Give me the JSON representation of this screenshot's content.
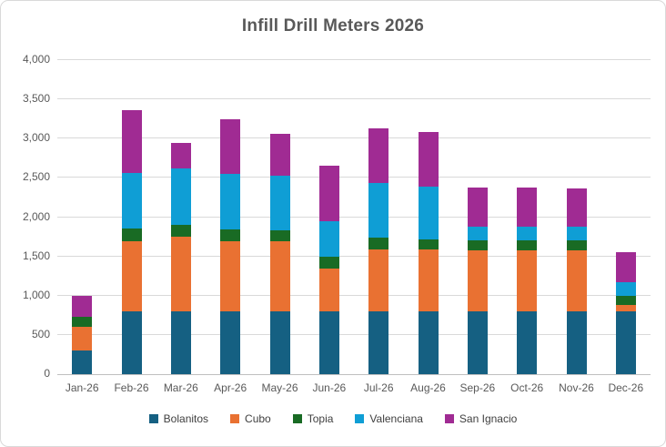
{
  "chart_data": {
    "type": "bar",
    "stacked": true,
    "title": "Infill Drill Meters 2026",
    "categories": [
      "Jan-26",
      "Feb-26",
      "Mar-26",
      "Apr-26",
      "May-26",
      "Jun-26",
      "Jul-26",
      "Aug-26",
      "Sep-26",
      "Oct-26",
      "Nov-26",
      "Dec-26"
    ],
    "series": [
      {
        "name": "Bolanitos",
        "color": "#156082",
        "values": [
          300,
          800,
          800,
          800,
          800,
          800,
          800,
          800,
          800,
          800,
          800,
          800
        ]
      },
      {
        "name": "Cubo",
        "color": "#E97132",
        "values": [
          300,
          890,
          950,
          890,
          890,
          550,
          790,
          790,
          780,
          780,
          780,
          80
        ]
      },
      {
        "name": "Topia",
        "color": "#196B24",
        "values": [
          130,
          170,
          150,
          150,
          140,
          150,
          150,
          130,
          130,
          130,
          130,
          120
        ]
      },
      {
        "name": "Valenciana",
        "color": "#0F9ED5",
        "values": [
          0,
          700,
          720,
          710,
          700,
          450,
          690,
          670,
          170,
          170,
          170,
          170
        ]
      },
      {
        "name": "San Ignacio",
        "color": "#A02B93",
        "values": [
          270,
          800,
          330,
          700,
          530,
          710,
          700,
          690,
          500,
          500,
          490,
          380
        ]
      }
    ],
    "totals": [
      1000,
      3360,
      2950,
      3250,
      3060,
      2660,
      3130,
      3080,
      2380,
      2380,
      2370,
      1550
    ],
    "xlabel": "",
    "ylabel": "",
    "ylim": [
      0,
      4000
    ],
    "y_tick_step": 500,
    "y_tick_labels": [
      "0",
      "500",
      "1,000",
      "1,500",
      "2,000",
      "2,500",
      "3,000",
      "3,500",
      "4,000"
    ],
    "grid": true,
    "legend_position": "bottom"
  },
  "styles": {
    "background": "#FFFFFF",
    "border_color": "#D9D9D9",
    "gridline_color": "#D9D9D9",
    "axis_line_color": "#BFBFBF",
    "title_color": "#595959",
    "axis_label_color": "#595959",
    "legend_label_color": "#404040"
  }
}
